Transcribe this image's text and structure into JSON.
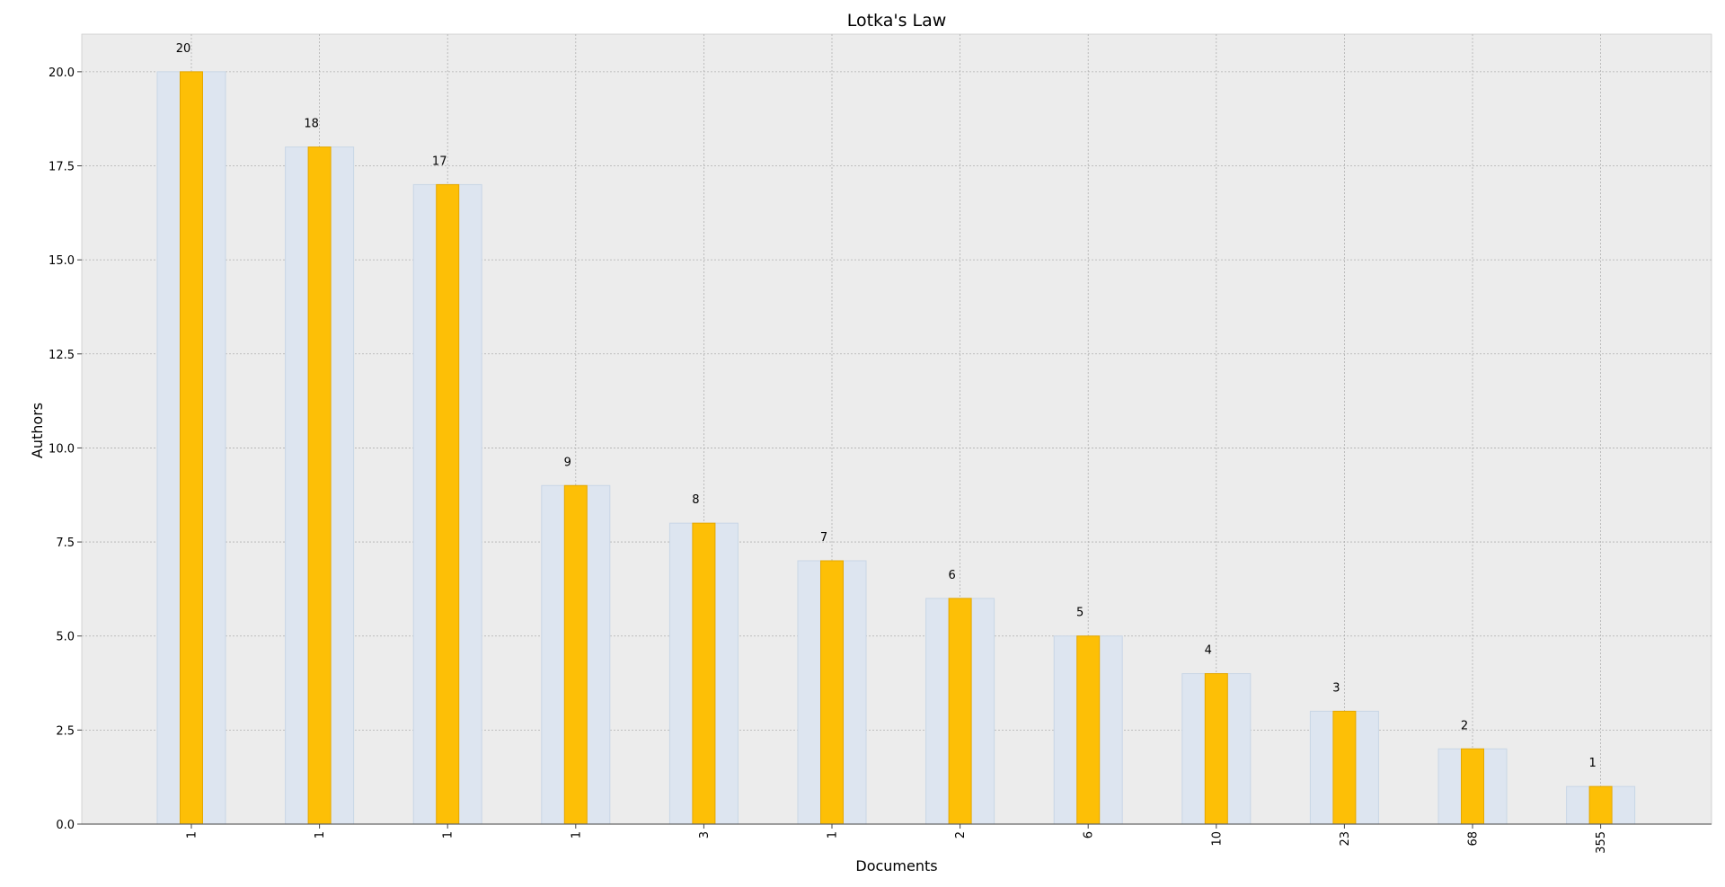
{
  "chart_data": {
    "type": "bar",
    "title": "Lotka's Law",
    "xlabel": "Documents",
    "ylabel": "Authors",
    "categories": [
      "1",
      "1",
      "1",
      "1",
      "3",
      "1",
      "2",
      "6",
      "10",
      "23",
      "68",
      "355"
    ],
    "values": [
      20,
      18,
      17,
      9,
      8,
      7,
      6,
      5,
      4,
      3,
      2,
      1
    ],
    "data_labels": [
      "20",
      "18",
      "17",
      "9",
      "8",
      "7",
      "6",
      "5",
      "4",
      "3",
      "2",
      "1"
    ],
    "ylim": [
      0,
      21
    ],
    "yticks": [
      0.0,
      2.5,
      5.0,
      7.5,
      10.0,
      12.5,
      15.0,
      17.5,
      20.0
    ],
    "ytick_labels": [
      "0.0",
      "2.5",
      "5.0",
      "7.5",
      "10.0",
      "12.5",
      "15.0",
      "17.5",
      "20.0"
    ],
    "grid": true,
    "legend": "none",
    "colors": {
      "plot_background": "#ececec",
      "bar_foreground": "#fdbf06",
      "bar_foreground_edge": "#e5a800",
      "bar_background": "#dde5f0",
      "bar_background_edge": "#c9d6e6",
      "axis_line": "#666666"
    }
  }
}
